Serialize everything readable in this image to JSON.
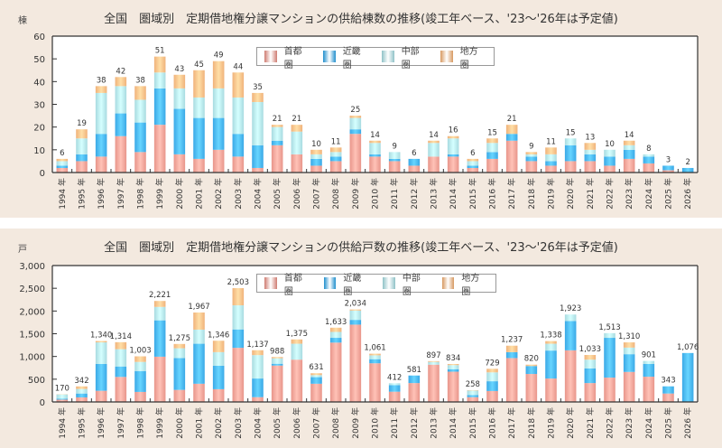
{
  "colors": {
    "shutoken": "#e8958a",
    "kinki": "#3aa8e6",
    "chubu": "#a8dbe0",
    "chihou": "#f0b27a"
  },
  "legend": [
    "首都圏",
    "近畿圏",
    "中部圏",
    "地方圏"
  ],
  "chart_data": [
    {
      "type": "bar",
      "stacked": true,
      "title": "全国　圏域別　定期借地権分譲マンションの供給棟数の推移(竣工年ベース、'23～'26年は予定値)",
      "ylabel": "棟",
      "xlabel": "",
      "ylim": [
        0,
        60
      ],
      "yticks": [
        0,
        10,
        20,
        30,
        40,
        50,
        60
      ],
      "legend_position": "top-center",
      "categories": [
        "1994年",
        "1995年",
        "1996年",
        "1997年",
        "1998年",
        "1999年",
        "2000年",
        "2001年",
        "2002年",
        "2003年",
        "2004年",
        "2005年",
        "2006年",
        "2007年",
        "2008年",
        "2009年",
        "2010年",
        "2011年",
        "2012年",
        "2013年",
        "2014年",
        "2015年",
        "2016年",
        "2017年",
        "2018年",
        "2019年",
        "2020年",
        "2021年",
        "2022年",
        "2023年",
        "2024年",
        "2025年",
        "2026年"
      ],
      "totals": [
        6,
        19,
        38,
        42,
        38,
        51,
        43,
        45,
        49,
        44,
        35,
        21,
        21,
        10,
        11,
        25,
        14,
        9,
        6,
        14,
        16,
        6,
        15,
        21,
        9,
        11,
        15,
        13,
        10,
        14,
        8,
        3,
        2
      ],
      "series": [
        {
          "name": "首都圏",
          "values": [
            2,
            5,
            7,
            16,
            9,
            21,
            8,
            6,
            10,
            7,
            2,
            12,
            8,
            3,
            5,
            17,
            7,
            5,
            3,
            7,
            7,
            2,
            6,
            14,
            5,
            3,
            5,
            5,
            3,
            6,
            4,
            1,
            0
          ]
        },
        {
          "name": "近畿圏",
          "values": [
            1,
            3,
            10,
            10,
            13,
            16,
            20,
            18,
            14,
            10,
            10,
            2,
            0,
            3,
            2,
            2,
            1,
            1,
            3,
            0,
            1,
            1,
            3,
            3,
            2,
            2,
            7,
            3,
            4,
            4,
            3,
            2,
            2
          ]
        },
        {
          "name": "中部圏",
          "values": [
            2,
            7,
            18,
            12,
            10,
            7,
            9,
            9,
            13,
            16,
            19,
            6,
            10,
            2,
            2,
            5,
            5,
            3,
            0,
            6,
            7,
            2,
            4,
            0,
            1,
            3,
            3,
            2,
            3,
            2,
            1,
            0,
            0
          ]
        },
        {
          "name": "地方圏",
          "values": [
            1,
            4,
            3,
            4,
            6,
            7,
            6,
            12,
            12,
            11,
            4,
            1,
            3,
            2,
            2,
            1,
            1,
            0,
            0,
            1,
            1,
            1,
            2,
            4,
            1,
            3,
            0,
            3,
            0,
            2,
            0,
            0,
            0
          ]
        }
      ]
    },
    {
      "type": "bar",
      "stacked": true,
      "title": "全国　圏域別　定期借地権分譲マンションの供給戸数の推移(竣工年ベース、'23～'26年は予定値)",
      "ylabel": "戸",
      "xlabel": "",
      "ylim": [
        0,
        3000
      ],
      "yticks": [
        0,
        500,
        1000,
        1500,
        2000,
        2500,
        3000
      ],
      "ytick_labels": [
        "0",
        "500",
        "1,000",
        "1,500",
        "2,000",
        "2,500",
        "3,000"
      ],
      "legend_position": "top-center",
      "categories": [
        "1994年",
        "1995年",
        "1996年",
        "1997年",
        "1998年",
        "1999年",
        "2000年",
        "2001年",
        "2002年",
        "2003年",
        "2004年",
        "2005年",
        "2006年",
        "2007年",
        "2008年",
        "2009年",
        "2010年",
        "2011年",
        "2012年",
        "2013年",
        "2014年",
        "2015年",
        "2016年",
        "2017年",
        "2018年",
        "2019年",
        "2020年",
        "2021年",
        "2022年",
        "2023年",
        "2024年",
        "2025年",
        "2026年"
      ],
      "totals": [
        170,
        342,
        1340,
        1314,
        1003,
        2221,
        1275,
        1967,
        1346,
        2503,
        1137,
        988,
        1375,
        631,
        1633,
        2034,
        1061,
        412,
        581,
        897,
        834,
        258,
        729,
        1237,
        820,
        1338,
        1923,
        1033,
        1513,
        1310,
        901,
        343,
        1076
      ],
      "total_labels": [
        "170",
        "342",
        "1,340",
        "1,314",
        "1,003",
        "2,221",
        "1,275",
        "1,967",
        "1,346",
        "2,503",
        "1,137",
        "988",
        "1,375",
        "631",
        "1,633",
        "2,034",
        "1,061",
        "412",
        "581",
        "897",
        "834",
        "258",
        "729",
        "1,237",
        "820",
        "1,338",
        "1,923",
        "1,033",
        "1,513",
        "1,310",
        "901",
        "343",
        "1,076"
      ],
      "series": [
        {
          "name": "首都圏",
          "values": [
            50,
            100,
            245,
            550,
            220,
            995,
            265,
            400,
            280,
            1190,
            105,
            800,
            930,
            400,
            1305,
            1700,
            850,
            225,
            415,
            820,
            665,
            105,
            240,
            965,
            615,
            515,
            1135,
            415,
            535,
            660,
            555,
            185,
            0
          ]
        },
        {
          "name": "近畿圏",
          "values": [
            20,
            85,
            590,
            230,
            460,
            800,
            700,
            880,
            515,
            405,
            410,
            40,
            0,
            145,
            105,
            105,
            90,
            145,
            166,
            0,
            55,
            45,
            215,
            130,
            175,
            615,
            645,
            320,
            875,
            390,
            280,
            158,
            1076
          ]
        },
        {
          "name": "中部圏",
          "values": [
            95,
            100,
            475,
            380,
            200,
            295,
            215,
            310,
            300,
            530,
            515,
            120,
            350,
            45,
            130,
            205,
            85,
            42,
            0,
            60,
            90,
            100,
            195,
            0,
            0,
            150,
            143,
            195,
            103,
            145,
            66,
            0,
            0
          ]
        },
        {
          "name": "地方圏",
          "values": [
            5,
            57,
            30,
            154,
            123,
            131,
            95,
            377,
            251,
            378,
            107,
            28,
            95,
            41,
            93,
            24,
            36,
            0,
            0,
            17,
            24,
            8,
            79,
            142,
            30,
            58,
            0,
            103,
            0,
            115,
            0,
            0,
            0
          ]
        }
      ]
    }
  ]
}
